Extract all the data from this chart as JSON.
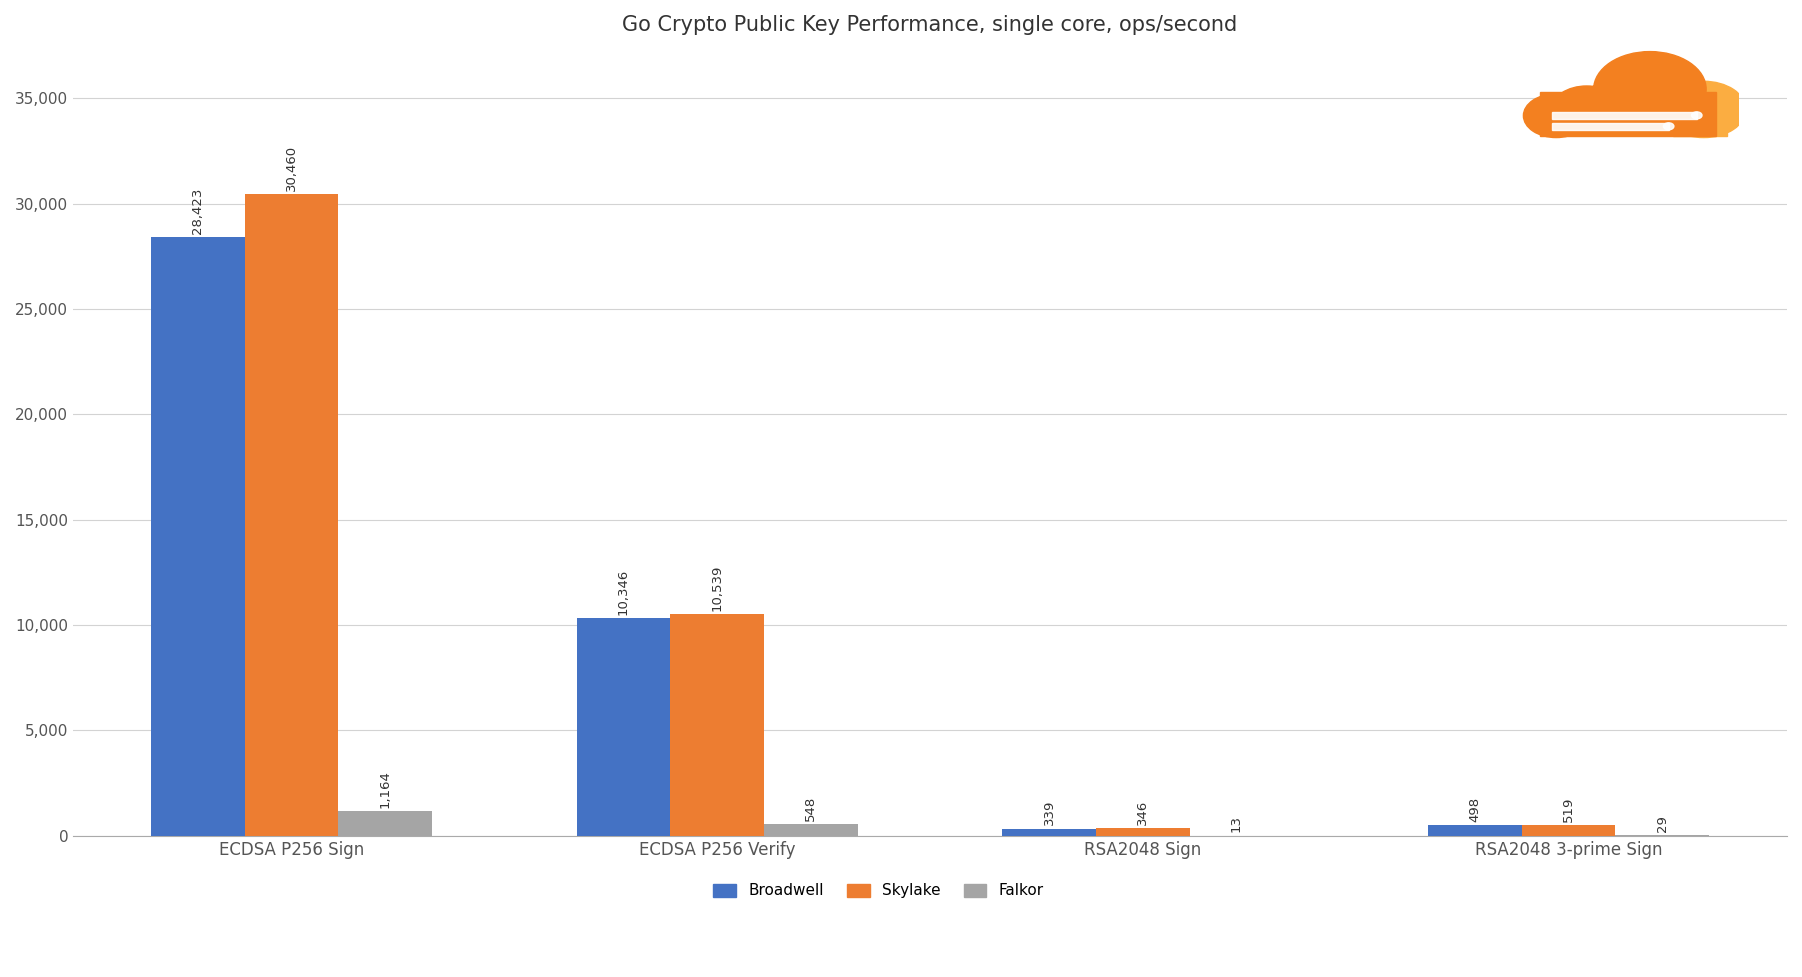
{
  "title": "Go Crypto Public Key Performance, single core, ops/second",
  "categories": [
    "ECDSA P256 Sign",
    "ECDSA P256 Verify",
    "RSA2048 Sign",
    "RSA2048 3-prime Sign"
  ],
  "series": {
    "Broadwell": [
      28423,
      10346,
      339,
      498
    ],
    "Skylake": [
      30460,
      10539,
      346,
      519
    ],
    "Falkor": [
      1164,
      548,
      13,
      29
    ]
  },
  "colors": {
    "Broadwell": "#4472C4",
    "Skylake": "#ED7D31",
    "Falkor": "#A5A5A5"
  },
  "ylim": [
    0,
    37000
  ],
  "yticks": [
    0,
    5000,
    10000,
    15000,
    20000,
    25000,
    30000,
    35000
  ],
  "ytick_labels": [
    "0",
    "5,000",
    "10,000",
    "15,000",
    "20,000",
    "25,000",
    "30,000",
    "35,000"
  ],
  "bar_width": 0.22,
  "label_fontsize": 9.5,
  "title_fontsize": 15,
  "tick_fontsize": 11,
  "legend_fontsize": 11,
  "background_color": "#FFFFFF",
  "grid_color": "#D3D3D3",
  "value_labels": {
    "Broadwell": [
      "28,423",
      "10,346",
      "339",
      "498"
    ],
    "Skylake": [
      "30,460",
      "10,539",
      "346",
      "519"
    ],
    "Falkor": [
      "1,164",
      "548",
      "13",
      "29"
    ]
  },
  "cloud_orange1": "#F38020",
  "cloud_orange2": "#FBAD41"
}
